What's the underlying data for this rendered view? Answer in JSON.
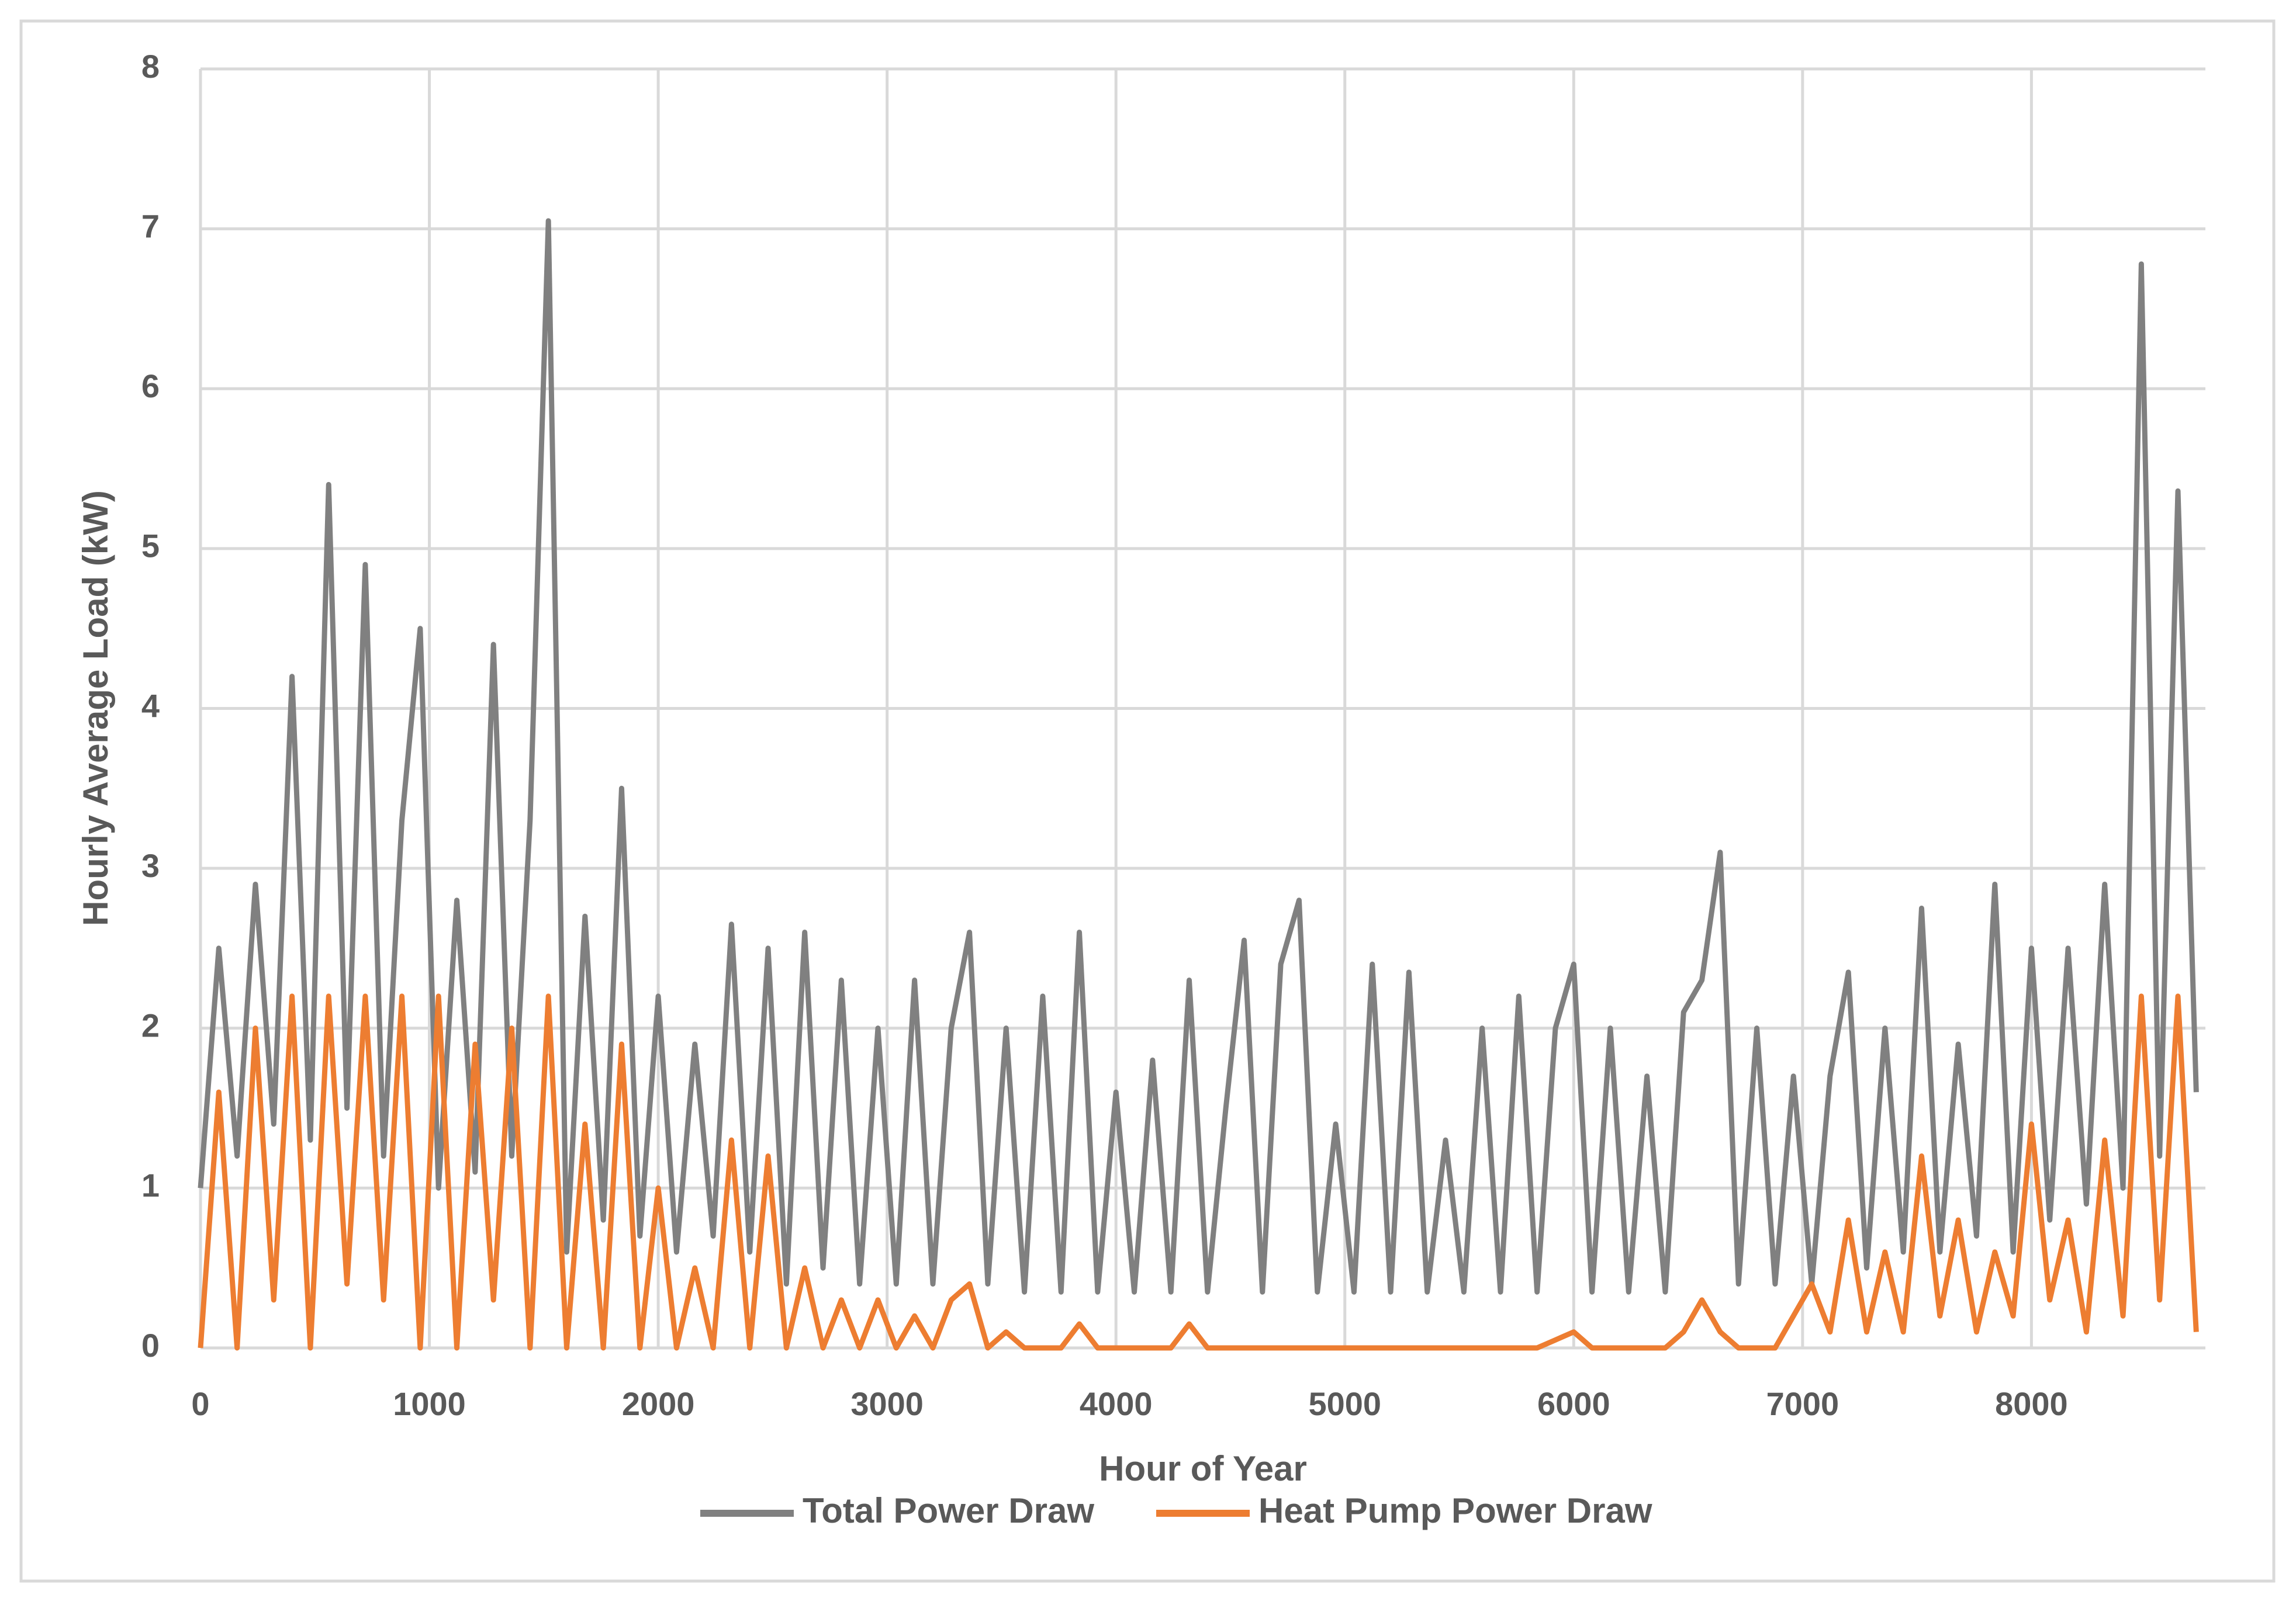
{
  "chart_data": {
    "type": "line",
    "x_label": "Hour of Year",
    "y_label": "Hourly Average Load (kW)",
    "x": [
      0,
      80,
      160,
      240,
      320,
      400,
      480,
      560,
      640,
      720,
      800,
      880,
      960,
      1040,
      1120,
      1200,
      1280,
      1360,
      1440,
      1520,
      1600,
      1680,
      1760,
      1840,
      1920,
      2000,
      2080,
      2160,
      2240,
      2320,
      2400,
      2480,
      2560,
      2640,
      2720,
      2800,
      2880,
      2960,
      3040,
      3120,
      3200,
      3280,
      3360,
      3440,
      3520,
      3600,
      3680,
      3760,
      3840,
      3920,
      4000,
      4080,
      4160,
      4240,
      4320,
      4400,
      4480,
      4560,
      4640,
      4720,
      4800,
      4880,
      4960,
      5040,
      5120,
      5200,
      5280,
      5360,
      5440,
      5520,
      5600,
      5680,
      5760,
      5840,
      5920,
      6000,
      6080,
      6160,
      6240,
      6320,
      6400,
      6480,
      6560,
      6640,
      6720,
      6800,
      6880,
      6960,
      7040,
      7120,
      7200,
      7280,
      7360,
      7440,
      7520,
      7600,
      7680,
      7760,
      7840,
      7920,
      8000,
      8080,
      8160,
      8240,
      8320,
      8400,
      8480,
      8560,
      8640,
      8720
    ],
    "series": [
      {
        "name": "Total Power Draw",
        "color": "#808080",
        "values": [
          1.0,
          2.5,
          1.2,
          2.9,
          1.4,
          4.2,
          1.3,
          5.4,
          1.5,
          4.9,
          1.2,
          3.3,
          4.5,
          1.0,
          2.8,
          1.1,
          4.4,
          1.2,
          3.3,
          7.05,
          0.6,
          2.7,
          0.8,
          3.5,
          0.7,
          2.2,
          0.6,
          1.9,
          0.7,
          2.65,
          0.6,
          2.5,
          0.4,
          2.6,
          0.5,
          2.3,
          0.4,
          2.0,
          0.4,
          2.3,
          0.4,
          2.0,
          2.6,
          0.4,
          2.0,
          0.35,
          2.2,
          0.35,
          2.6,
          0.35,
          1.6,
          0.35,
          1.8,
          0.35,
          2.3,
          0.35,
          1.5,
          2.55,
          0.35,
          2.4,
          2.8,
          0.35,
          1.4,
          0.35,
          2.4,
          0.35,
          2.35,
          0.35,
          1.3,
          0.35,
          2.0,
          0.35,
          2.2,
          0.35,
          2.0,
          2.4,
          0.35,
          2.0,
          0.35,
          1.7,
          0.35,
          2.1,
          2.3,
          3.1,
          0.4,
          2.0,
          0.4,
          1.7,
          0.4,
          1.7,
          2.35,
          0.5,
          2.0,
          0.6,
          2.75,
          0.6,
          1.9,
          0.7,
          2.9,
          0.6,
          2.5,
          0.8,
          2.5,
          0.9,
          2.9,
          1.0,
          6.78,
          1.2,
          5.36,
          1.6
        ]
      },
      {
        "name": "Heat Pump Power Draw",
        "color": "#ed7d31",
        "values": [
          0,
          1.6,
          0,
          2.0,
          0.3,
          2.2,
          0,
          2.2,
          0.4,
          2.2,
          0.3,
          2.2,
          0,
          2.2,
          0,
          1.9,
          0.3,
          2.0,
          0,
          2.2,
          0,
          1.4,
          0,
          1.9,
          0,
          1.0,
          0,
          0.5,
          0,
          1.3,
          0,
          1.2,
          0,
          0.5,
          0,
          0.3,
          0,
          0.3,
          0,
          0.2,
          0,
          0.3,
          0.4,
          0,
          0.1,
          0,
          0,
          0,
          0.15,
          0,
          0,
          0,
          0,
          0,
          0.15,
          0,
          0,
          0,
          0,
          0,
          0,
          0,
          0,
          0,
          0,
          0,
          0,
          0,
          0,
          0,
          0,
          0,
          0,
          0,
          0.05,
          0.1,
          0,
          0,
          0,
          0,
          0,
          0.1,
          0.3,
          0.1,
          0,
          0,
          0,
          0.2,
          0.4,
          0.1,
          0.8,
          0.1,
          0.6,
          0.1,
          1.2,
          0.2,
          0.8,
          0.1,
          0.6,
          0.2,
          1.4,
          0.3,
          0.8,
          0.1,
          1.3,
          0.2,
          2.2,
          0.3,
          2.2,
          0.1
        ]
      }
    ],
    "xlim": [
      0,
      8760
    ],
    "xticks": [
      0,
      1000,
      2000,
      3000,
      4000,
      5000,
      6000,
      7000,
      8000
    ],
    "ylim": [
      0,
      8
    ],
    "yticks": [
      0,
      1,
      2,
      3,
      4,
      5,
      6,
      7,
      8
    ],
    "grid": true,
    "legend": "bottom"
  }
}
